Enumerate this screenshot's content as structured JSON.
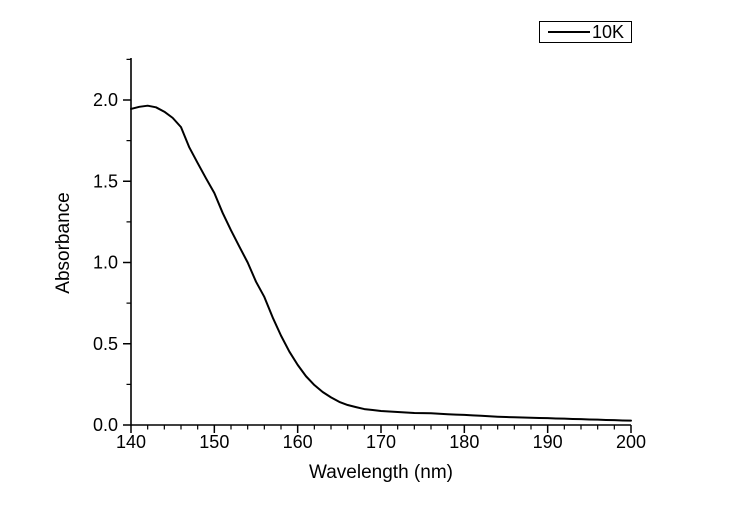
{
  "colors": {
    "line": "#000000",
    "axis": "#000000",
    "text": "#000000",
    "background": "#ffffff"
  },
  "legend": {
    "position": "top-right",
    "entries": [
      {
        "label": "10K",
        "color": "#000000",
        "line_style": "solid"
      }
    ]
  },
  "chart_data": {
    "type": "line",
    "title": "",
    "xlabel": "Wavelength (nm)",
    "ylabel": "Absorbance",
    "xlim": [
      140,
      200
    ],
    "ylim": [
      0,
      2.25
    ],
    "grid": false,
    "x_major_ticks": [
      140,
      150,
      160,
      170,
      180,
      190,
      200
    ],
    "x_tick_labels": [
      "140",
      "150",
      "160",
      "170",
      "180",
      "190",
      "200"
    ],
    "x_minor_step": 2,
    "y_major_ticks": [
      0.0,
      0.5,
      1.0,
      1.5,
      2.0
    ],
    "y_tick_labels": [
      "0.0",
      "0.5",
      "1.0",
      "1.5",
      "2.0"
    ],
    "y_minor_step": 0.25,
    "legend_position": "top-right",
    "series": [
      {
        "name": "10K",
        "color": "#000000",
        "x": [
          140,
          141,
          142,
          143,
          144,
          145,
          146,
          147,
          148,
          149,
          150,
          151,
          152,
          153,
          154,
          155,
          156,
          157,
          158,
          159,
          160,
          161,
          162,
          163,
          164,
          165,
          166,
          167,
          168,
          169,
          170,
          171,
          172,
          173,
          174,
          175,
          176,
          177,
          178,
          179,
          180,
          181,
          182,
          183,
          184,
          185,
          186,
          187,
          188,
          189,
          190,
          191,
          192,
          193,
          194,
          195,
          196,
          197,
          198,
          199,
          200
        ],
        "y": [
          1.945,
          1.958,
          1.965,
          1.955,
          1.928,
          1.89,
          1.833,
          1.708,
          1.612,
          1.518,
          1.428,
          1.305,
          1.198,
          1.098,
          1.0,
          0.882,
          0.788,
          0.662,
          0.55,
          0.452,
          0.37,
          0.3,
          0.246,
          0.203,
          0.17,
          0.142,
          0.123,
          0.11,
          0.098,
          0.092,
          0.086,
          0.083,
          0.08,
          0.077,
          0.074,
          0.073,
          0.072,
          0.069,
          0.066,
          0.064,
          0.062,
          0.059,
          0.057,
          0.054,
          0.051,
          0.049,
          0.048,
          0.046,
          0.045,
          0.043,
          0.042,
          0.04,
          0.039,
          0.037,
          0.036,
          0.034,
          0.033,
          0.031,
          0.03,
          0.028,
          0.027
        ]
      }
    ]
  }
}
